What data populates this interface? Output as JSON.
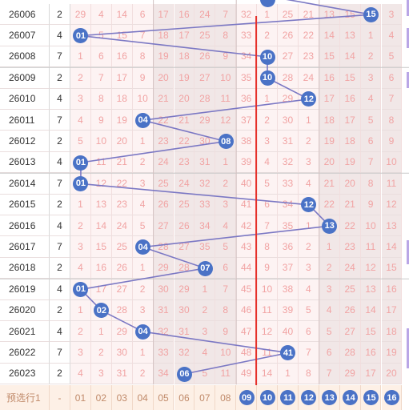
{
  "rows": [
    {
      "issue": "26006",
      "sum": "2",
      "cells": [
        "29",
        "4",
        "14",
        "6",
        "17",
        "16",
        "24",
        "7",
        "32",
        "1",
        "25",
        "21",
        "13",
        "15",
        "15",
        "3"
      ],
      "ball_col": 14
    },
    {
      "issue": "26007",
      "sum": "4",
      "cells": [
        "01",
        "5",
        "15",
        "7",
        "18",
        "17",
        "25",
        "8",
        "33",
        "2",
        "26",
        "22",
        "14",
        "13",
        "1",
        "4"
      ],
      "ball_col": 0
    },
    {
      "issue": "26008",
      "sum": "7",
      "cells": [
        "1",
        "6",
        "16",
        "8",
        "19",
        "18",
        "26",
        "9",
        "34",
        "10",
        "27",
        "23",
        "15",
        "14",
        "2",
        "5"
      ],
      "ball_col": 9
    },
    {
      "issue": "26009",
      "sum": "2",
      "cells": [
        "2",
        "7",
        "17",
        "9",
        "20",
        "19",
        "27",
        "10",
        "35",
        "10",
        "28",
        "24",
        "16",
        "15",
        "3",
        "6"
      ],
      "ball_col": 9
    },
    {
      "issue": "26010",
      "sum": "4",
      "cells": [
        "3",
        "8",
        "18",
        "10",
        "21",
        "20",
        "28",
        "11",
        "36",
        "1",
        "29",
        "12",
        "17",
        "16",
        "4",
        "7"
      ],
      "ball_col": 11
    },
    {
      "issue": "26011",
      "sum": "7",
      "cells": [
        "4",
        "9",
        "19",
        "04",
        "22",
        "21",
        "29",
        "12",
        "37",
        "2",
        "30",
        "1",
        "18",
        "17",
        "5",
        "8"
      ],
      "ball_col": 3
    },
    {
      "issue": "26012",
      "sum": "2",
      "cells": [
        "5",
        "10",
        "20",
        "1",
        "23",
        "22",
        "30",
        "08",
        "38",
        "3",
        "31",
        "2",
        "19",
        "18",
        "6",
        "9"
      ],
      "ball_col": 7
    },
    {
      "issue": "26013",
      "sum": "4",
      "cells": [
        "01",
        "11",
        "21",
        "2",
        "24",
        "23",
        "31",
        "1",
        "39",
        "4",
        "32",
        "3",
        "20",
        "19",
        "7",
        "10"
      ],
      "ball_col": 0
    },
    {
      "issue": "26014",
      "sum": "7",
      "cells": [
        "01",
        "12",
        "22",
        "3",
        "25",
        "24",
        "32",
        "2",
        "40",
        "5",
        "33",
        "4",
        "21",
        "20",
        "8",
        "11"
      ],
      "ball_col": 0
    },
    {
      "issue": "26015",
      "sum": "2",
      "cells": [
        "1",
        "13",
        "23",
        "4",
        "26",
        "25",
        "33",
        "3",
        "41",
        "6",
        "34",
        "12",
        "22",
        "21",
        "9",
        "12"
      ],
      "ball_col": 11
    },
    {
      "issue": "26016",
      "sum": "4",
      "cells": [
        "2",
        "14",
        "24",
        "5",
        "27",
        "26",
        "34",
        "4",
        "42",
        "7",
        "35",
        "1",
        "13",
        "22",
        "10",
        "13"
      ],
      "ball_col": 12
    },
    {
      "issue": "26017",
      "sum": "7",
      "cells": [
        "3",
        "15",
        "25",
        "04",
        "28",
        "27",
        "35",
        "5",
        "43",
        "8",
        "36",
        "2",
        "1",
        "23",
        "11",
        "14"
      ],
      "ball_col": 3
    },
    {
      "issue": "26018",
      "sum": "2",
      "cells": [
        "4",
        "16",
        "26",
        "1",
        "29",
        "28",
        "07",
        "6",
        "44",
        "9",
        "37",
        "3",
        "2",
        "24",
        "12",
        "15"
      ],
      "ball_col": 6
    },
    {
      "issue": "26019",
      "sum": "4",
      "cells": [
        "01",
        "17",
        "27",
        "2",
        "30",
        "29",
        "1",
        "7",
        "45",
        "10",
        "38",
        "4",
        "3",
        "25",
        "13",
        "16"
      ],
      "ball_col": 0
    },
    {
      "issue": "26020",
      "sum": "2",
      "cells": [
        "1",
        "02",
        "28",
        "3",
        "31",
        "30",
        "2",
        "8",
        "46",
        "11",
        "39",
        "5",
        "4",
        "26",
        "14",
        "17"
      ],
      "ball_col": 1
    },
    {
      "issue": "26021",
      "sum": "4",
      "cells": [
        "2",
        "1",
        "29",
        "04",
        "32",
        "31",
        "3",
        "9",
        "47",
        "12",
        "40",
        "6",
        "5",
        "27",
        "15",
        "18"
      ],
      "ball_col": 3
    },
    {
      "issue": "26022",
      "sum": "7",
      "cells": [
        "3",
        "2",
        "30",
        "1",
        "33",
        "32",
        "4",
        "10",
        "48",
        "11",
        "41",
        "7",
        "6",
        "28",
        "16",
        "19"
      ],
      "ball_col": 10
    },
    {
      "issue": "26023",
      "sum": "2",
      "cells": [
        "4",
        "3",
        "31",
        "2",
        "34",
        "06",
        "5",
        "11",
        "49",
        "14",
        "1",
        "8",
        "7",
        "29",
        "17",
        "20"
      ],
      "ball_col": 5
    }
  ],
  "footer": {
    "label": "预选行1",
    "sum": "-",
    "numbers": [
      "01",
      "02",
      "03",
      "04",
      "05",
      "06",
      "07",
      "08",
      "09",
      "10",
      "11",
      "12",
      "13",
      "14",
      "15",
      "16"
    ]
  },
  "colors": {
    "ball": "#4a72c6",
    "line": "#7b78c4",
    "arrow": "#e5302a",
    "miss_text": "#f1a3a3",
    "footer_bg": "#fdf0e6"
  }
}
